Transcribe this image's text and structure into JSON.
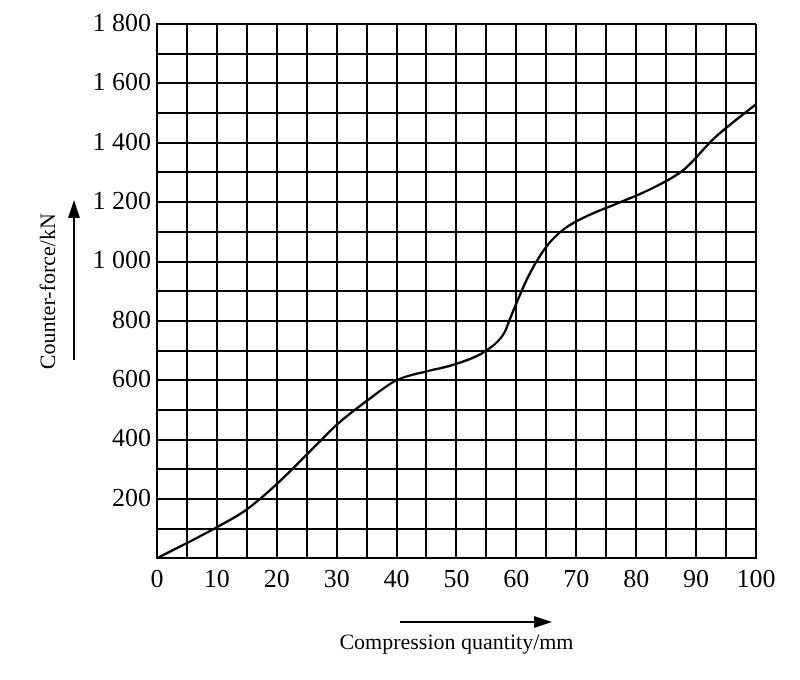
{
  "chart_data": {
    "type": "line",
    "xlabel": "Compression quantity/mm",
    "ylabel": "Counter-force/kN",
    "x": [
      0,
      10,
      15,
      20,
      27,
      30,
      35,
      40,
      45,
      50,
      55,
      58,
      59,
      62,
      65,
      68,
      72,
      78,
      82,
      88,
      93,
      100
    ],
    "series": [
      {
        "color": "#000000",
        "values": [
          0,
          105,
          165,
          250,
          390,
          450,
          530,
          600,
          630,
          655,
          700,
          760,
          810,
          950,
          1050,
          1110,
          1155,
          1205,
          1240,
          1310,
          1415,
          1530
        ]
      }
    ],
    "xlim": [
      0,
      100
    ],
    "xticks": [
      0,
      {
        "value": 5,
        "label": null
      },
      10,
      {
        "value": 15,
        "label": null
      },
      20,
      {
        "value": 25,
        "label": null
      },
      30,
      {
        "value": 35,
        "label": null
      },
      40,
      {
        "value": 45,
        "label": null
      },
      50,
      {
        "value": 55,
        "label": null
      },
      60,
      {
        "value": 65,
        "label": null
      },
      70,
      {
        "value": 75,
        "label": null
      },
      80,
      {
        "value": 85,
        "label": null
      },
      90,
      {
        "value": 95,
        "label": null
      },
      100
    ],
    "ylim": [
      0,
      1800
    ],
    "yticks": [
      {
        "value": 0,
        "label": null
      },
      {
        "value": 100,
        "label": null
      },
      200,
      {
        "value": 300,
        "label": null
      },
      400,
      {
        "value": 500,
        "label": null
      },
      600,
      {
        "value": 700,
        "label": null
      },
      800,
      {
        "value": 900,
        "label": null
      },
      {
        "value": 1000,
        "label": "1 000"
      },
      {
        "value": 1100,
        "label": null
      },
      {
        "value": 1200,
        "label": "1 200"
      },
      {
        "value": 1300,
        "label": null
      },
      {
        "value": 1400,
        "label": "1 400"
      },
      {
        "value": 1500,
        "label": null
      },
      {
        "value": 1600,
        "label": "1 600"
      },
      {
        "value": 1700,
        "label": null
      },
      {
        "value": 1800,
        "label": "1 800"
      }
    ],
    "grid": true,
    "marker": "none",
    "line_style": "solid",
    "legend": false
  }
}
